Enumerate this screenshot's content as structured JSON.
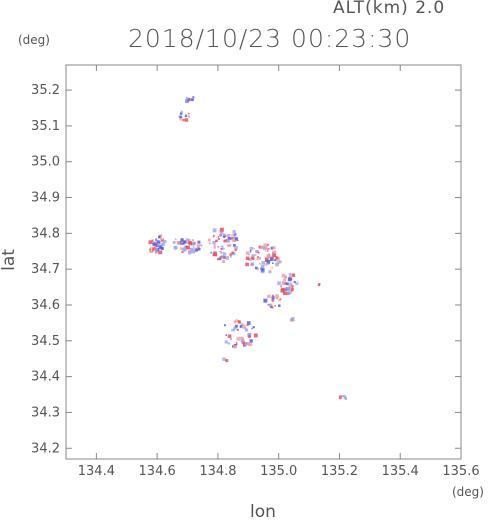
{
  "header": {
    "altitude": "ALT(km) 2.0",
    "timestamp": "2018/10/23 00:23:30"
  },
  "chart_data": {
    "type": "scatter",
    "title": "2018/10/23 00:23:30",
    "subtitle": "ALT(km) 2.0",
    "xlabel": "lon",
    "ylabel": "lat",
    "x_unit": "(deg)",
    "y_unit": "(deg)",
    "xlim": [
      134.3,
      135.6
    ],
    "ylim": [
      34.17,
      35.27
    ],
    "xticks": [
      134.4,
      134.6,
      134.8,
      135.0,
      135.2,
      135.4,
      135.6
    ],
    "xtick_labels": [
      "134.4",
      "134.6",
      "134.8",
      "135.0",
      "135.2",
      "135.4",
      "135.6"
    ],
    "yticks": [
      34.2,
      34.3,
      34.4,
      34.5,
      34.6,
      34.7,
      34.8,
      34.9,
      35.0,
      35.1,
      35.2
    ],
    "ytick_labels": [
      "34.2",
      "34.3",
      "34.4",
      "34.5",
      "34.6",
      "34.7",
      "34.8",
      "34.9",
      "35.0",
      "35.1",
      "35.2"
    ],
    "grid": false,
    "colors": {
      "positive": "#e8505a",
      "negative": "#5060e0",
      "axis": "#888888"
    },
    "clusters": [
      {
        "lon": 134.7,
        "lat": 35.18,
        "radius_lon": 0.02,
        "radius_lat": 0.015,
        "points": 10
      },
      {
        "lon": 134.69,
        "lat": 35.13,
        "radius_lon": 0.025,
        "radius_lat": 0.015,
        "points": 12
      },
      {
        "lon": 134.6,
        "lat": 34.77,
        "radius_lon": 0.03,
        "radius_lat": 0.025,
        "points": 40
      },
      {
        "lon": 134.7,
        "lat": 34.77,
        "radius_lon": 0.05,
        "radius_lat": 0.025,
        "points": 60
      },
      {
        "lon": 134.82,
        "lat": 34.77,
        "radius_lon": 0.05,
        "radius_lat": 0.05,
        "points": 90
      },
      {
        "lon": 134.95,
        "lat": 34.73,
        "radius_lon": 0.06,
        "radius_lat": 0.04,
        "points": 90
      },
      {
        "lon": 135.03,
        "lat": 34.66,
        "radius_lon": 0.03,
        "radius_lat": 0.03,
        "points": 40
      },
      {
        "lon": 134.98,
        "lat": 34.61,
        "radius_lon": 0.03,
        "radius_lat": 0.02,
        "points": 20
      },
      {
        "lon": 134.87,
        "lat": 34.52,
        "radius_lon": 0.06,
        "radius_lat": 0.04,
        "points": 60
      },
      {
        "lon": 135.05,
        "lat": 34.56,
        "radius_lon": 0.01,
        "radius_lat": 0.01,
        "points": 4
      },
      {
        "lon": 134.82,
        "lat": 34.445,
        "radius_lon": 0.01,
        "radius_lat": 0.005,
        "points": 3
      },
      {
        "lon": 135.21,
        "lat": 34.34,
        "radius_lon": 0.01,
        "radius_lat": 0.006,
        "points": 5
      },
      {
        "lon": 135.13,
        "lat": 34.66,
        "radius_lon": 0.005,
        "radius_lat": 0.005,
        "points": 2
      }
    ]
  }
}
